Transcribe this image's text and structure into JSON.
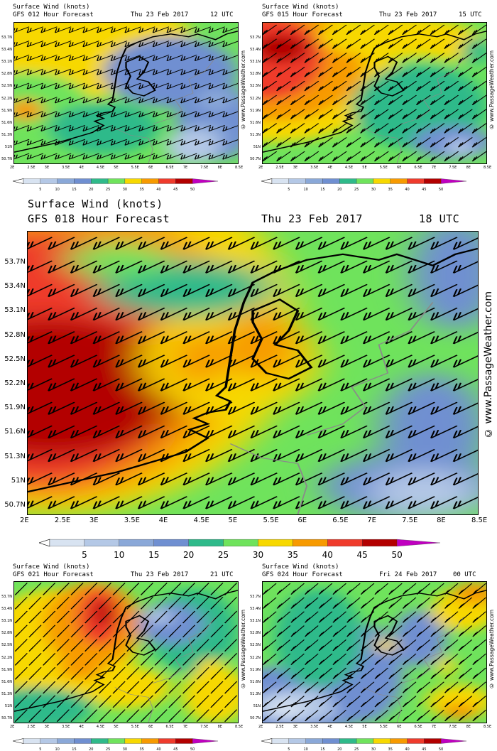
{
  "watermark": "© www.PassageWeather.com",
  "scale": {
    "labels": [
      "5",
      "10",
      "15",
      "20",
      "25",
      "30",
      "35",
      "40",
      "45",
      "50"
    ],
    "colors": [
      "#d8e3f1",
      "#b4c8e6",
      "#8aa8d8",
      "#6f8fd1",
      "#2fba8a",
      "#6fe35c",
      "#f7d800",
      "#f79a00",
      "#ef3b2c",
      "#b30000",
      "#c000c0"
    ]
  },
  "maps": [
    {
      "id": "f012",
      "title": "Surface Wind (knots)",
      "model": "GFS 012 Hour Forecast",
      "date": "Thu 23 Feb 2017",
      "time": "12 UTC",
      "x_labels": [
        "2E",
        "2.5E",
        "3E",
        "3.5E",
        "4E",
        "4.5E",
        "5E",
        "5.5E",
        "6E",
        "6.5E",
        "7E",
        "7.5E",
        "8E",
        "8.5E"
      ],
      "y_labels": [
        "53.7N",
        "53.4N",
        "53.1N",
        "52.8N",
        "52.5N",
        "52.2N",
        "51.9N",
        "51.6N",
        "51.3N",
        "51N",
        "50.7N"
      ]
    },
    {
      "id": "f015",
      "title": "Surface Wind (knots)",
      "model": "GFS 015 Hour Forecast",
      "date": "Thu 23 Feb 2017",
      "time": "15 UTC",
      "x_labels": [
        "2E",
        "2.5E",
        "3E",
        "3.5E",
        "4E",
        "4.5E",
        "5E",
        "5.5E",
        "6E",
        "6.5E",
        "7E",
        "7.5E",
        "8E",
        "8.5E"
      ],
      "y_labels": [
        "53.7N",
        "53.4N",
        "53.1N",
        "52.8N",
        "52.5N",
        "52.2N",
        "51.9N",
        "51.6N",
        "51.3N",
        "51N",
        "50.7N"
      ]
    },
    {
      "id": "f018",
      "title": "Surface Wind (knots)",
      "model": "GFS 018 Hour Forecast",
      "date": "Thu 23 Feb 2017",
      "time": "18 UTC",
      "x_labels": [
        "2E",
        "2.5E",
        "3E",
        "3.5E",
        "4E",
        "4.5E",
        "5E",
        "5.5E",
        "6E",
        "6.5E",
        "7E",
        "7.5E",
        "8E",
        "8.5E"
      ],
      "y_labels": [
        "53.7N",
        "53.4N",
        "53.1N",
        "52.8N",
        "52.5N",
        "52.2N",
        "51.9N",
        "51.6N",
        "51.3N",
        "51N",
        "50.7N"
      ]
    },
    {
      "id": "f021",
      "title": "Surface Wind (knots)",
      "model": "GFS 021 Hour Forecast",
      "date": "Thu 23 Feb 2017",
      "time": "21 UTC",
      "x_labels": [
        "2E",
        "2.5E",
        "3E",
        "3.5E",
        "4E",
        "4.5E",
        "5E",
        "5.5E",
        "6E",
        "6.5E",
        "7E",
        "7.5E",
        "8E",
        "8.5E"
      ],
      "y_labels": [
        "53.7N",
        "53.4N",
        "53.1N",
        "52.8N",
        "52.5N",
        "52.2N",
        "51.9N",
        "51.6N",
        "51.3N",
        "51N",
        "50.7N"
      ]
    },
    {
      "id": "f024",
      "title": "Surface Wind (knots)",
      "model": "GFS 024 Hour Forecast",
      "date": "Fri 24 Feb 2017",
      "time": "00 UTC",
      "x_labels": [
        "2E",
        "2.5E",
        "3E",
        "3.5E",
        "4E",
        "4.5E",
        "5E",
        "5.5E",
        "6E",
        "6.5E",
        "7E",
        "7.5E",
        "8E",
        "8.5E"
      ],
      "y_labels": [
        "53.7N",
        "53.4N",
        "53.1N",
        "52.8N",
        "52.5N",
        "52.2N",
        "51.9N",
        "51.6N",
        "51.3N",
        "51N",
        "50.7N"
      ]
    }
  ]
}
